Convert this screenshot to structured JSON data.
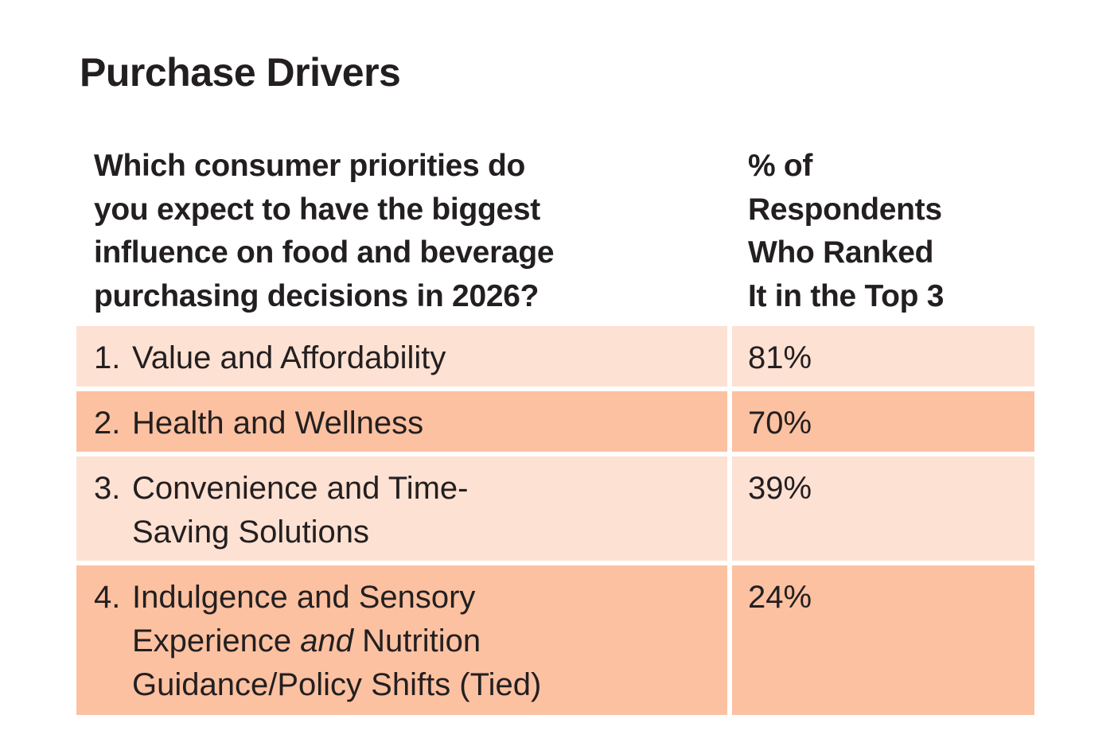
{
  "title": "Purchase Drivers",
  "colors": {
    "row_light": "#fde1d2",
    "row_dark": "#fbc1a0",
    "text": "#231f20"
  },
  "chart_data": {
    "type": "table",
    "title": "Purchase Drivers",
    "columns": [
      "Which consumer priorities do you expect to have the biggest influence on food and beverage purchasing decisions in 2026?",
      "% of Respondents Who Ranked It in the Top 3"
    ],
    "header_lines": {
      "question": [
        "Which consumer priorities do",
        "you expect to have the biggest",
        "influence on food and beverage",
        "purchasing decisions in 2026?"
      ],
      "percent": [
        "% of",
        "Respondents",
        "Who Ranked",
        "It in the Top 3"
      ]
    },
    "rows": [
      {
        "rank": "1.",
        "lines": [
          "Value and Affordability"
        ],
        "value": "81%"
      },
      {
        "rank": "2.",
        "lines": [
          "Health and Wellness"
        ],
        "value": "70%"
      },
      {
        "rank": "3.",
        "lines": [
          "Convenience and Time-",
          "Saving Solutions"
        ],
        "value": "39%"
      },
      {
        "rank": "4.",
        "lines": [
          "Indulgence and Sensory",
          "Experience",
          "and",
          "Nutrition",
          "Guidance/Policy Shifts (Tied)"
        ],
        "value": "24%"
      }
    ]
  }
}
